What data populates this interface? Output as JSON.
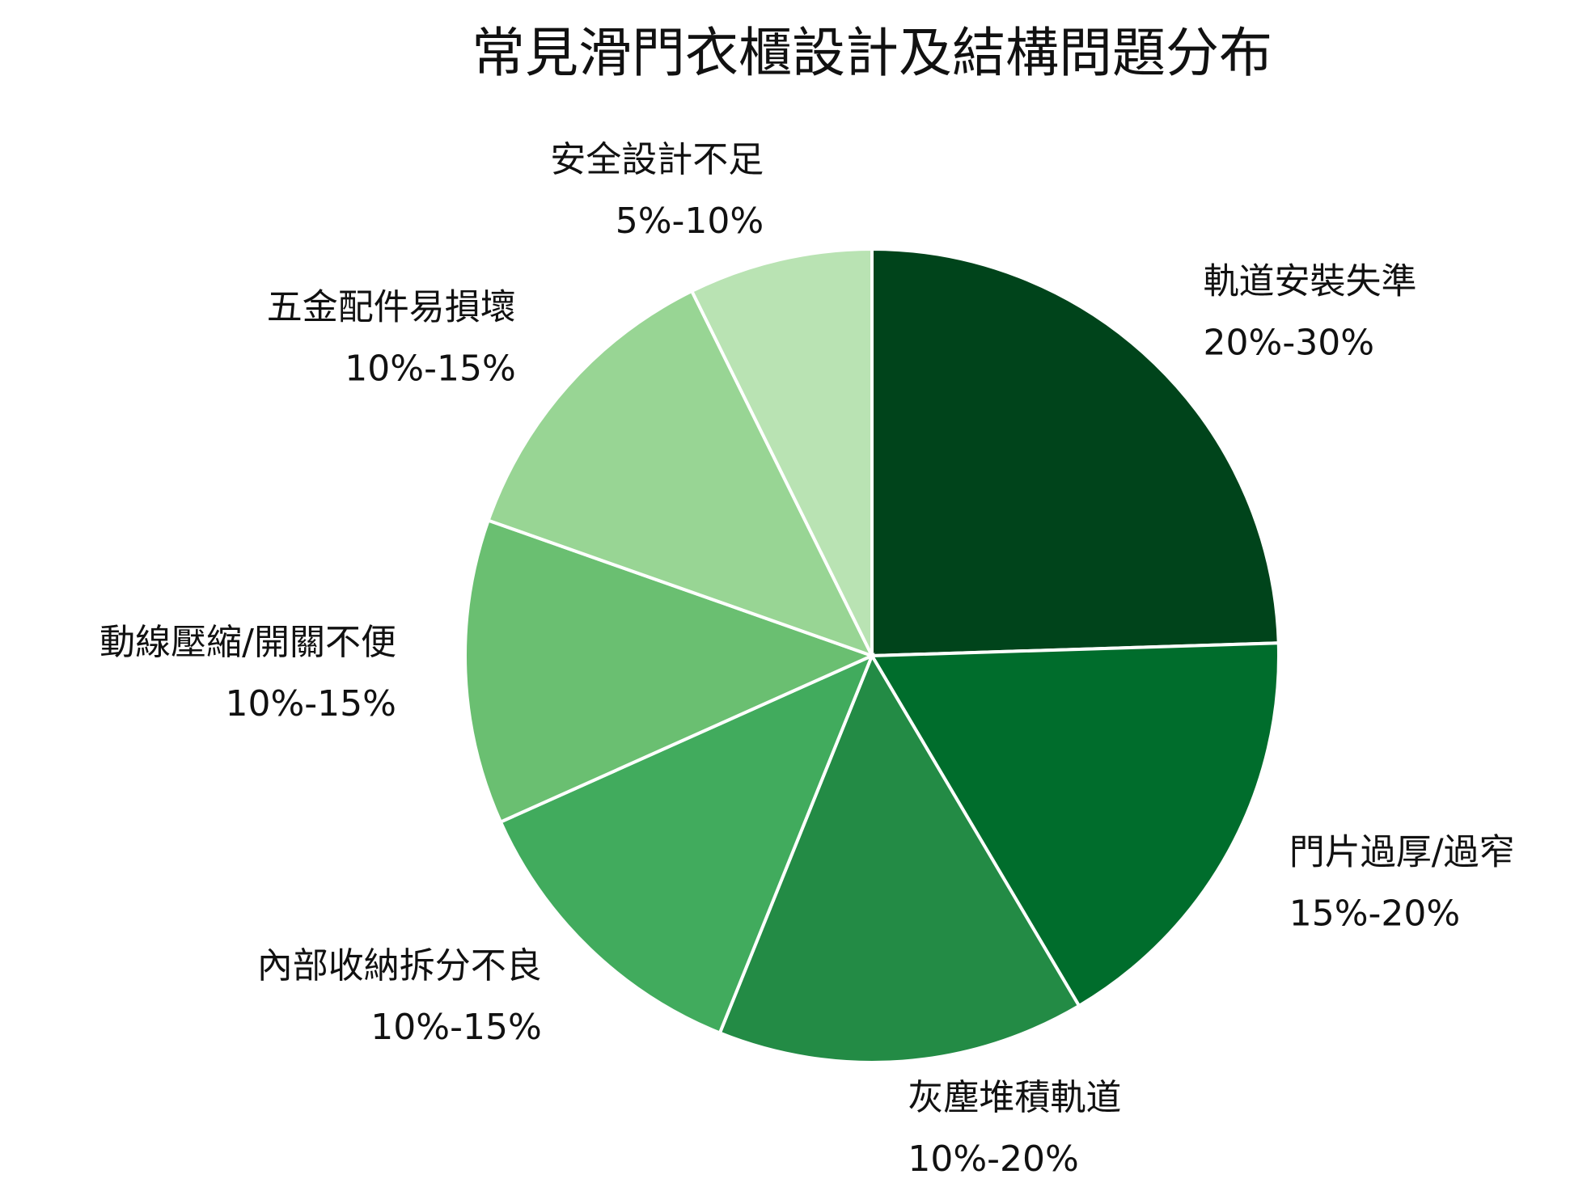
{
  "chart_data": {
    "type": "pie",
    "title": "常見滑門衣櫃設計及結構問題分布",
    "categories": [
      "軌道安裝失準",
      "門片過厚/過窄",
      "灰塵堆積軌道",
      "內部收納拆分不良",
      "動線壓縮/開關不便",
      "五金配件易損壞",
      "安全設計不足"
    ],
    "values": [
      24.5,
      17,
      14.6,
      12.2,
      12.1,
      12.3,
      7.3
    ],
    "value_labels": [
      "20%-30%",
      "15%-20%",
      "10%-20%",
      "10%-15%",
      "10%-15%",
      "10%-15%",
      "5%-10%"
    ],
    "colors": [
      "#00441b",
      "#006d2c",
      "#238b45",
      "#41ab5d",
      "#6abf71",
      "#98d594",
      "#b9e3b3"
    ]
  }
}
